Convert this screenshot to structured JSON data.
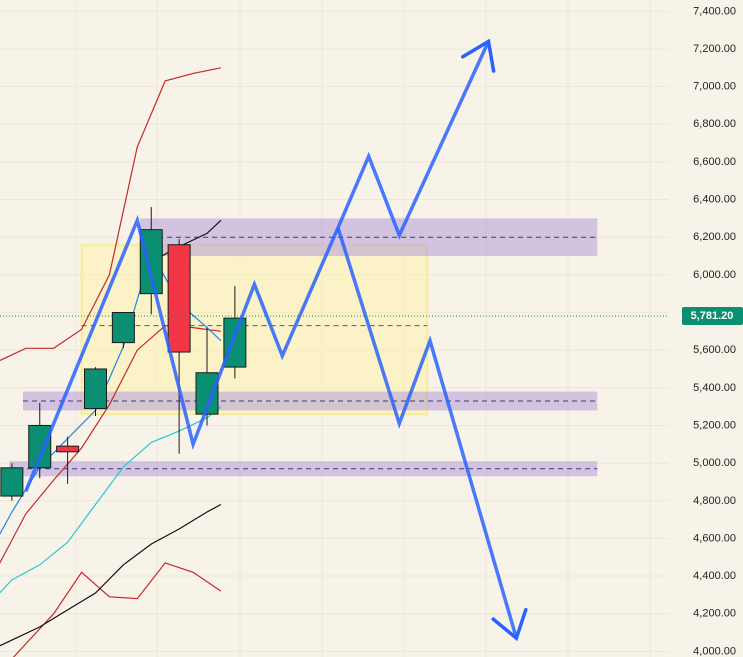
{
  "chart_data": {
    "type": "candlestick",
    "y_axis": {
      "range": [
        3970,
        7460
      ],
      "ticks": [
        "7,400.00",
        "7,200.00",
        "7,000.00",
        "6,800.00",
        "6,600.00",
        "6,400.00",
        "6,200.00",
        "6,000.00",
        "5,800.00",
        "5,600.00",
        "5,400.00",
        "5,200.00",
        "5,000.00",
        "4,800.00",
        "4,600.00",
        "4,400.00",
        "4,200.00",
        "4,000.00"
      ],
      "tick_values": [
        7400,
        7200,
        7000,
        6800,
        6600,
        6400,
        6200,
        6000,
        5800,
        5600,
        5400,
        5200,
        5000,
        4800,
        4600,
        4400,
        4200,
        4000
      ]
    },
    "x_axis": {
      "range": [
        0,
        24
      ]
    },
    "current_price": {
      "label": "5,781.20",
      "value": 5781.2
    },
    "candles": [
      {
        "x": 1,
        "open": 4825,
        "high": 5000,
        "low": 4800,
        "close": 4975
      },
      {
        "x": 2,
        "open": 4975,
        "high": 5320,
        "low": 4920,
        "close": 5200
      },
      {
        "x": 3,
        "open": 5090,
        "high": 5140,
        "low": 4890,
        "close": 5060
      },
      {
        "x": 4,
        "open": 5290,
        "high": 5510,
        "low": 5250,
        "close": 5500
      },
      {
        "x": 5,
        "open": 5640,
        "high": 5800,
        "low": 5610,
        "close": 5800
      },
      {
        "x": 6,
        "open": 5900,
        "high": 6360,
        "low": 5790,
        "close": 6240
      },
      {
        "x": 7,
        "open": 6160,
        "high": 6190,
        "low": 5050,
        "close": 5590
      },
      {
        "x": 8,
        "open": 5260,
        "high": 5720,
        "low": 5200,
        "close": 5480
      },
      {
        "x": 9,
        "open": 5510,
        "high": 5940,
        "low": 5450,
        "close": 5770
      }
    ],
    "colors": {
      "up": "#0b8f73",
      "down": "#f23645",
      "scenario": "#2962ff",
      "support_zone": "#b39ddb",
      "range_box": "#fff59d"
    },
    "lines": [
      {
        "name": "upper-band",
        "color": "#c62828",
        "points": [
          [
            0,
            5440
          ],
          [
            0.5,
            5540
          ],
          [
            1.5,
            5610
          ],
          [
            2.5,
            5610
          ],
          [
            3.5,
            5710
          ],
          [
            4.5,
            6000
          ],
          [
            5.5,
            6680
          ],
          [
            6.5,
            7030
          ],
          [
            7.5,
            7070
          ],
          [
            8.5,
            7100
          ]
        ]
      },
      {
        "name": "lower-band-mid",
        "color": "#c62828",
        "points": [
          [
            0,
            4350
          ],
          [
            0.5,
            4450
          ],
          [
            1.5,
            4730
          ],
          [
            2.5,
            4910
          ],
          [
            3.5,
            5080
          ],
          [
            4.5,
            5310
          ],
          [
            5.5,
            5600
          ],
          [
            6.5,
            5730
          ],
          [
            7.5,
            5720
          ],
          [
            8.5,
            5700
          ]
        ]
      },
      {
        "name": "lower-band",
        "color": "#c62828",
        "points": [
          [
            1,
            3960
          ],
          [
            2.5,
            4200
          ],
          [
            3.5,
            4420
          ],
          [
            4.5,
            4290
          ],
          [
            5.5,
            4280
          ],
          [
            6.5,
            4470
          ],
          [
            7.5,
            4420
          ],
          [
            8.5,
            4320
          ]
        ]
      },
      {
        "name": "fast-ma",
        "color": "#1e88e5",
        "points": [
          [
            0,
            4470
          ],
          [
            1,
            4740
          ],
          [
            2,
            4980
          ],
          [
            3,
            5130
          ],
          [
            4,
            5280
          ],
          [
            5,
            5620
          ],
          [
            6,
            6120
          ],
          [
            7,
            5850
          ],
          [
            8,
            5720
          ],
          [
            8.5,
            5650
          ]
        ]
      },
      {
        "name": "signal-ma",
        "color": "#26c6da",
        "points": [
          [
            0,
            4220
          ],
          [
            1,
            4380
          ],
          [
            2,
            4460
          ],
          [
            3,
            4580
          ],
          [
            4,
            4780
          ],
          [
            5,
            4980
          ],
          [
            6,
            5110
          ],
          [
            7,
            5170
          ],
          [
            8,
            5240
          ],
          [
            8.5,
            5300
          ]
        ]
      },
      {
        "name": "trend-ma",
        "color": "#111111",
        "points": [
          [
            0,
            3990
          ],
          [
            1,
            4060
          ],
          [
            2,
            4130
          ],
          [
            3,
            4220
          ],
          [
            4,
            4310
          ],
          [
            5,
            4460
          ],
          [
            6,
            4570
          ],
          [
            7,
            4650
          ],
          [
            8,
            4740
          ],
          [
            8.5,
            4780
          ]
        ]
      },
      {
        "name": "bull-channel",
        "color": "#111111",
        "points": [
          [
            6,
            6070
          ],
          [
            7,
            6150
          ],
          [
            8,
            6220
          ],
          [
            8.5,
            6290
          ]
        ]
      }
    ],
    "zones": [
      {
        "name": "resistance-zone",
        "x0": 5.6,
        "x1": 22,
        "y0": 6100,
        "y1": 6300,
        "mid": 6200
      },
      {
        "name": "support-zone",
        "x0": 1.4,
        "x1": 22,
        "y0": 5280,
        "y1": 5380,
        "mid": 5330
      },
      {
        "name": "lower-support-zone",
        "x0": 0.9,
        "x1": 22,
        "y0": 4930,
        "y1": 5010,
        "mid": 4970
      }
    ],
    "range_box": {
      "x0": 3.5,
      "x1": 15.9,
      "y0": 5260,
      "y1": 6160,
      "mid": 5730
    },
    "scenario_paths": [
      {
        "name": "bullish-path",
        "points": [
          [
            1.5,
            4850
          ],
          [
            5.5,
            6290
          ],
          [
            7.5,
            5100
          ],
          [
            9.7,
            5950
          ],
          [
            10.7,
            5570
          ],
          [
            12.7,
            6250
          ],
          [
            13.8,
            6630
          ],
          [
            14.9,
            6210
          ],
          [
            18.1,
            7240
          ]
        ]
      },
      {
        "name": "bearish-path",
        "points": [
          [
            12.7,
            6250
          ],
          [
            14.9,
            5210
          ],
          [
            16.0,
            5650
          ],
          [
            19.1,
            4070
          ]
        ]
      }
    ]
  }
}
